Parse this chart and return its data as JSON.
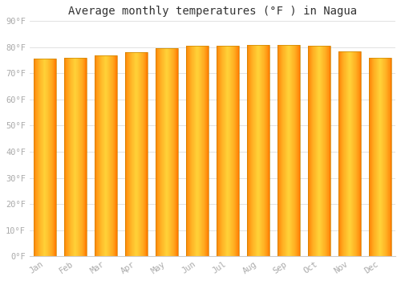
{
  "title": "Average monthly temperatures (°F ) in Nagua",
  "months": [
    "Jan",
    "Feb",
    "Mar",
    "Apr",
    "May",
    "Jun",
    "Jul",
    "Aug",
    "Sep",
    "Oct",
    "Nov",
    "Dec"
  ],
  "values": [
    75.5,
    76.0,
    77.0,
    78.0,
    79.5,
    80.5,
    80.5,
    81.0,
    81.0,
    80.5,
    78.5,
    76.0
  ],
  "ylim": [
    0,
    90
  ],
  "ytick_step": 10,
  "bar_color_left": "#E07800",
  "bar_color_center": "#FFD060",
  "bar_color_right": "#E07800",
  "bar_edge_color": "#CC8800",
  "background_color": "#ffffff",
  "plot_bg_color": "#ffffff",
  "grid_color": "#dddddd",
  "title_fontsize": 10,
  "tick_fontsize": 7.5,
  "tick_color": "#aaaaaa",
  "title_font": "monospace",
  "fig_width": 5.0,
  "fig_height": 3.5,
  "dpi": 100
}
